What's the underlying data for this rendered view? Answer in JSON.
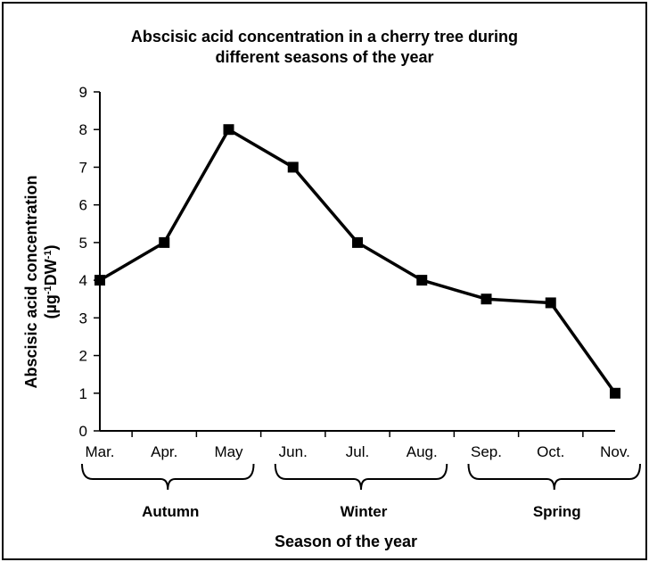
{
  "chart_data": {
    "type": "line",
    "title": [
      "Abscisic acid concentration in a cherry tree during",
      "different seasons of the year"
    ],
    "xlabel": "Season of the year",
    "ylabel": {
      "line1": "Abscisic acid concentration",
      "line2_prefix": "(µg",
      "line2_sup1": "-1",
      "line2_mid": "DW",
      "line2_sup2": "-1",
      "line2_suffix": ")"
    },
    "categories": [
      "Mar.",
      "Apr.",
      "May",
      "Jun.",
      "Jul.",
      "Aug.",
      "Sep.",
      "Oct.",
      "Nov."
    ],
    "values": [
      4,
      5,
      8,
      7,
      5,
      4,
      3.5,
      3.4,
      1
    ],
    "ylim": [
      0,
      9
    ],
    "yticks": [
      0,
      1,
      2,
      3,
      4,
      5,
      6,
      7,
      8,
      9
    ],
    "grid": false,
    "line_color": "#000000",
    "marker": "square",
    "groups": [
      {
        "label": "Autumn",
        "start": 0,
        "end": 2
      },
      {
        "label": "Winter",
        "start": 3,
        "end": 5
      },
      {
        "label": "Spring",
        "start": 6,
        "end": 8
      }
    ]
  }
}
